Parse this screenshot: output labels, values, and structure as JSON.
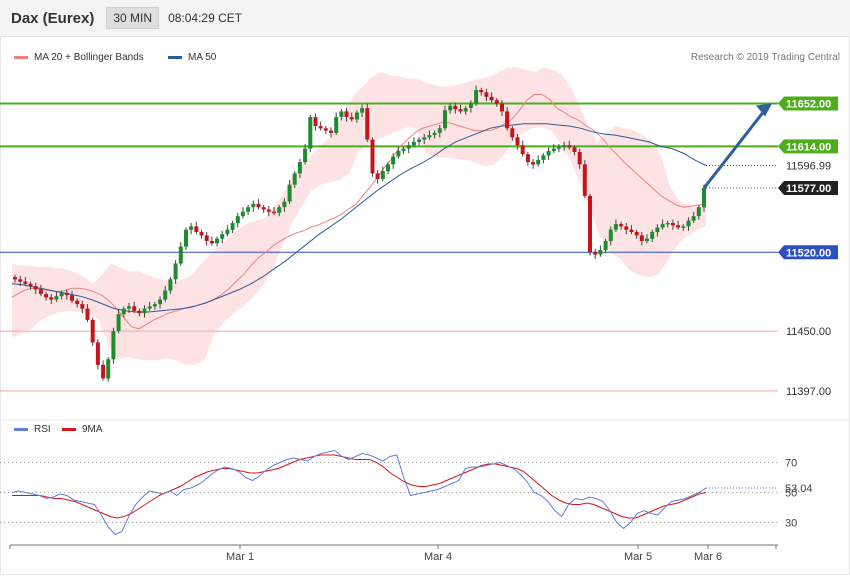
{
  "header": {
    "title": "Dax (Eurex)",
    "timeframe": "30 MIN",
    "time": "08:04:29 CET"
  },
  "legend": {
    "bollinger": "MA 20 + Bollinger Bands",
    "ma50": "MA 50",
    "copyright": "Research © 2019 Trading Central"
  },
  "colors": {
    "bull": "#1e8c2e",
    "bear": "#c8131c",
    "band_fill": "#fde3e4",
    "ma20": "#f08080",
    "ma50": "#2b5b9a",
    "resistance": "#4cae1b",
    "support": "#2d4fc4",
    "target_line": "#f2a8a8",
    "arrow": "#2e5f9e",
    "rsi": "#5f7ee0",
    "rsi_ma": "#d9141d"
  },
  "chart_data": [
    {
      "type": "candlestick",
      "title": "Dax (Eurex)",
      "timeframe": "30 MIN",
      "ylim": [
        11380,
        11680
      ],
      "x_tick_labels": [
        "Mar 1",
        "Mar 4",
        "Mar 5",
        "Mar 6"
      ],
      "levels": [
        {
          "value": 11652.0,
          "label": "11652.00",
          "type": "resistance"
        },
        {
          "value": 11614.0,
          "label": "11614.00",
          "type": "resistance"
        },
        {
          "value": 11596.99,
          "label": "11596.99",
          "type": "ma50"
        },
        {
          "value": 11577.0,
          "label": "11577.00",
          "type": "last"
        },
        {
          "value": 11520.0,
          "label": "11520.00",
          "type": "support"
        },
        {
          "value": 11450.0,
          "label": "11450.00",
          "type": "target"
        },
        {
          "value": 11397.0,
          "label": "11397.00",
          "type": "target"
        }
      ],
      "close_series": [
        11496,
        11494,
        11492,
        11490,
        11487,
        11483,
        11480,
        11478,
        11481,
        11484,
        11482,
        11477,
        11474,
        11470,
        11460,
        11440,
        11420,
        11408,
        11425,
        11450,
        11465,
        11470,
        11472,
        11468,
        11466,
        11470,
        11472,
        11474,
        11478,
        11486,
        11496,
        11510,
        11525,
        11540,
        11543,
        11538,
        11535,
        11530,
        11528,
        11532,
        11536,
        11540,
        11546,
        11552,
        11556,
        11560,
        11563,
        11560,
        11558,
        11556,
        11555,
        11560,
        11565,
        11580,
        11590,
        11600,
        11612,
        11640,
        11632,
        11630,
        11628,
        11626,
        11640,
        11645,
        11640,
        11638,
        11644,
        11648,
        11620,
        11590,
        11585,
        11592,
        11598,
        11605,
        11610,
        11612,
        11615,
        11618,
        11620,
        11622,
        11624,
        11626,
        11630,
        11646,
        11650,
        11647,
        11645,
        11648,
        11652,
        11664,
        11662,
        11658,
        11655,
        11652,
        11645,
        11630,
        11622,
        11615,
        11607,
        11600,
        11598,
        11602,
        11606,
        11610,
        11612,
        11614,
        11615,
        11613,
        11609,
        11598,
        11570,
        11520,
        11518,
        11522,
        11530,
        11540,
        11545,
        11543,
        11540,
        11538,
        11535,
        11530,
        11532,
        11538,
        11542,
        11545,
        11546,
        11544,
        11542,
        11543,
        11548,
        11552,
        11560,
        11577
      ],
      "ma20_series": [
        11480,
        11484,
        11487,
        11488,
        11487,
        11486,
        11485,
        11486,
        11488,
        11488,
        11487,
        11485,
        11482,
        11477,
        11470,
        11462,
        11454,
        11452,
        11456,
        11460,
        11463,
        11466,
        11468,
        11470,
        11471,
        11473,
        11475,
        11478,
        11482,
        11487,
        11494,
        11500,
        11508,
        11515,
        11520,
        11526,
        11530,
        11534,
        11537,
        11539,
        11542,
        11544,
        11547,
        11550,
        11553,
        11558,
        11562,
        11570,
        11578,
        11587,
        11596,
        11604,
        11614,
        11620,
        11626,
        11630,
        11632,
        11634,
        11636,
        11634,
        11632,
        11630,
        11628,
        11628,
        11628,
        11630,
        11634,
        11638,
        11646,
        11655,
        11660,
        11660,
        11656,
        11648,
        11644,
        11640,
        11637,
        11632,
        11628,
        11622,
        11614,
        11607,
        11600,
        11594,
        11588,
        11582,
        11576,
        11570,
        11566,
        11562,
        11560,
        11561,
        11562,
        11563
      ],
      "ma50_series": [
        11492,
        11491,
        11489,
        11487,
        11485,
        11483,
        11481,
        11478,
        11474,
        11470,
        11468,
        11467,
        11467,
        11468,
        11469,
        11470,
        11472,
        11475,
        11479,
        11483,
        11487,
        11492,
        11498,
        11505,
        11512,
        11520,
        11528,
        11536,
        11543,
        11550,
        11558,
        11566,
        11574,
        11581,
        11588,
        11594,
        11599,
        11605,
        11612,
        11618,
        11622,
        11626,
        11630,
        11632,
        11633,
        11634,
        11634,
        11634,
        11633,
        11632,
        11630,
        11627,
        11625,
        11624,
        11622,
        11620,
        11618,
        11614,
        11612,
        11608,
        11602,
        11597
      ],
      "bollinger_upper_series": [
        11510,
        11508,
        11508,
        11507,
        11507,
        11506,
        11505,
        11502,
        11498,
        11492,
        11500,
        11510,
        11506,
        11503,
        11503,
        11500,
        11497,
        11495,
        11494,
        11496,
        11500,
        11510,
        11518,
        11526,
        11532,
        11540,
        11545,
        11548,
        11550,
        11560,
        11570,
        11586,
        11596,
        11604,
        11612,
        11620,
        11630,
        11648,
        11660,
        11668,
        11676,
        11680,
        11677,
        11676,
        11674,
        11674,
        11670,
        11668,
        11667,
        11668,
        11670,
        11672,
        11674,
        11676,
        11680,
        11684,
        11684,
        11682,
        11680,
        11684,
        11682,
        11678,
        11666,
        11650,
        11630,
        11618,
        11626,
        11632,
        11630,
        11628,
        11624,
        11618,
        11606,
        11578,
        11566,
        11562,
        11560,
        11562
      ],
      "bollinger_lower_series": [
        11444,
        11448,
        11452,
        11460,
        11464,
        11467,
        11468,
        11467,
        11465,
        11460,
        11438,
        11425,
        11427,
        11425,
        11424,
        11424,
        11426,
        11424,
        11420,
        11420,
        11425,
        11448,
        11458,
        11466,
        11472,
        11480,
        11490,
        11505,
        11525,
        11545,
        11560,
        11574,
        11580,
        11582,
        11584,
        11590,
        11610,
        11616,
        11620,
        11624,
        11628,
        11631,
        11630,
        11608,
        11604,
        11604,
        11603,
        11602,
        11600,
        11596,
        11598,
        11606,
        11618,
        11626,
        11630,
        11631,
        11628,
        11615,
        11601,
        11580,
        11558,
        11534,
        11520,
        11515,
        11505,
        11500,
        11498,
        11500,
        11512,
        11526,
        11534,
        11540,
        11543
      ]
    },
    {
      "type": "line",
      "title": "RSI",
      "series": [
        {
          "name": "RSI",
          "values": [
            50,
            51,
            50,
            49,
            48,
            46,
            47,
            49,
            48,
            45,
            44,
            43,
            42,
            35,
            27,
            22,
            24,
            34,
            42,
            47,
            51,
            50,
            49,
            51,
            48,
            52,
            53,
            55,
            58,
            62,
            65,
            67,
            66,
            64,
            60,
            58,
            61,
            65,
            68,
            70,
            72,
            73,
            72,
            71,
            74,
            76,
            77,
            78,
            74,
            72,
            74,
            76,
            75,
            73,
            71,
            74,
            75,
            60,
            48,
            49,
            50,
            51,
            52,
            54,
            56,
            58,
            66,
            67,
            67,
            68,
            69,
            70,
            68,
            66,
            62,
            57,
            50,
            48,
            44,
            38,
            34,
            42,
            46,
            45,
            47,
            46,
            44,
            38,
            30,
            26,
            30,
            36,
            38,
            36,
            35,
            40,
            44,
            45,
            46,
            48,
            50,
            53
          ]
        },
        {
          "name": "9MA",
          "values": [
            48,
            48,
            48,
            48,
            48,
            47,
            46,
            46,
            45,
            44,
            42,
            40,
            38,
            36,
            34,
            33,
            34,
            36,
            39,
            42,
            45,
            48,
            50,
            52,
            54,
            57,
            60,
            62,
            64,
            65,
            66,
            66,
            65,
            64,
            63,
            63,
            64,
            65,
            66,
            68,
            70,
            72,
            73,
            74,
            75,
            75,
            75,
            74,
            73,
            72,
            72,
            72,
            70,
            67,
            63,
            60,
            57,
            55,
            54,
            54,
            55,
            56,
            58,
            60,
            62,
            64,
            66,
            68,
            69,
            69,
            68,
            67,
            66,
            64,
            60,
            56,
            52,
            48,
            45,
            43,
            42,
            42,
            43,
            42,
            40,
            38,
            36,
            34,
            33,
            33,
            35,
            37,
            39,
            41,
            42,
            43,
            45,
            47,
            49,
            50
          ]
        }
      ],
      "ylim": [
        15,
        85
      ],
      "y_ticks": [
        30,
        50,
        70
      ],
      "last_value_label": "53.04",
      "legend": [
        "RSI",
        "9MA"
      ]
    }
  ]
}
